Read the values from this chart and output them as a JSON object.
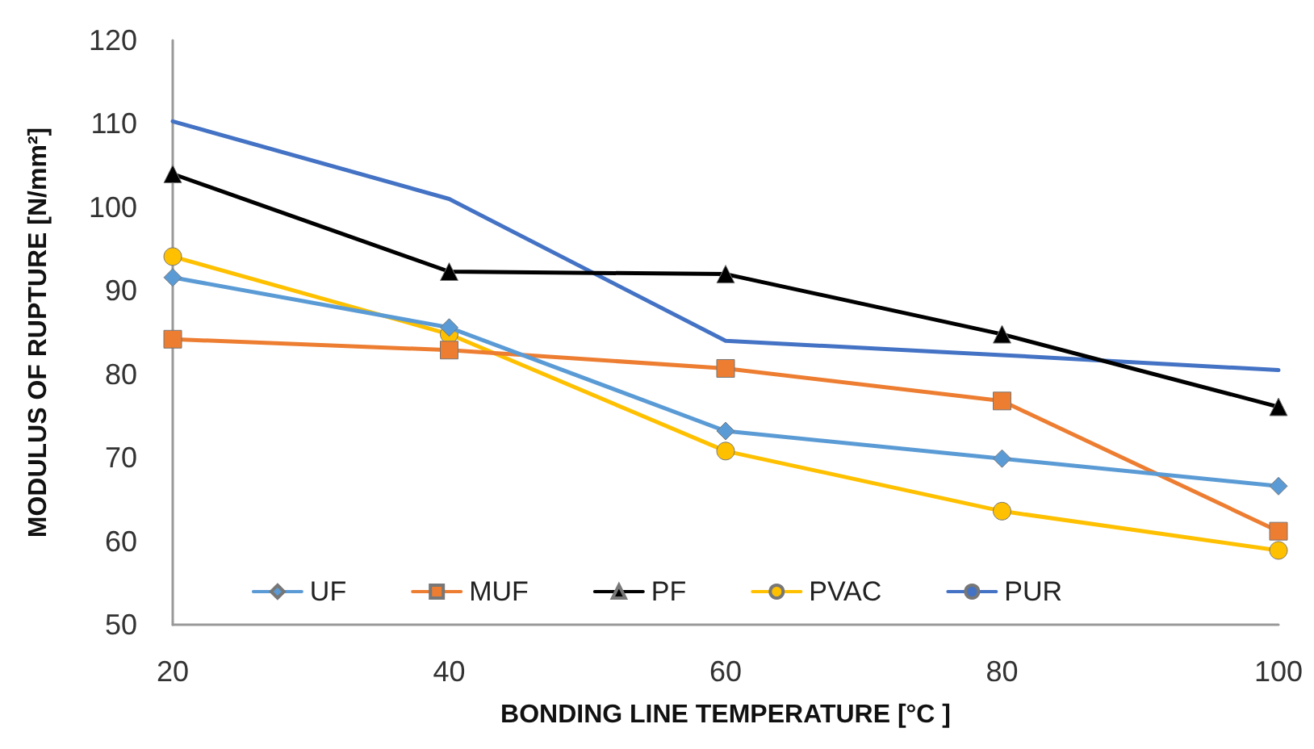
{
  "chart_data": {
    "type": "line",
    "xlabel": "BONDING LINE TEMPERATURE [°C ]",
    "ylabel": "MODULUS OF RUPTURE [N/mm²]",
    "x": [
      20,
      40,
      60,
      80,
      100
    ],
    "xlim": [
      20,
      100
    ],
    "xticks": [
      20,
      40,
      60,
      80,
      100
    ],
    "ylim": [
      50,
      120
    ],
    "yticks": [
      50,
      60,
      70,
      80,
      90,
      100,
      110,
      120
    ],
    "grid": false,
    "legend": "bottom",
    "series": [
      {
        "name": "UF",
        "color": "#5b9bd5",
        "marker": "diamond",
        "values": [
          91.6,
          85.6,
          73.2,
          69.9,
          66.6
        ]
      },
      {
        "name": "MUF",
        "color": "#ed7d31",
        "marker": "square",
        "values": [
          84.2,
          82.9,
          80.7,
          76.8,
          61.2
        ]
      },
      {
        "name": "PF",
        "color": "#000000",
        "marker": "triangle",
        "values": [
          104,
          92.3,
          92,
          84.8,
          76.1
        ]
      },
      {
        "name": "PVAC",
        "color": "#ffc000",
        "marker": "circle",
        "values": [
          94.1,
          84.8,
          70.8,
          63.6,
          58.9
        ]
      },
      {
        "name": "PUR",
        "color": "#4472c4",
        "marker": "none",
        "values": [
          110.3,
          101,
          84,
          82.3,
          80.5
        ]
      }
    ]
  }
}
